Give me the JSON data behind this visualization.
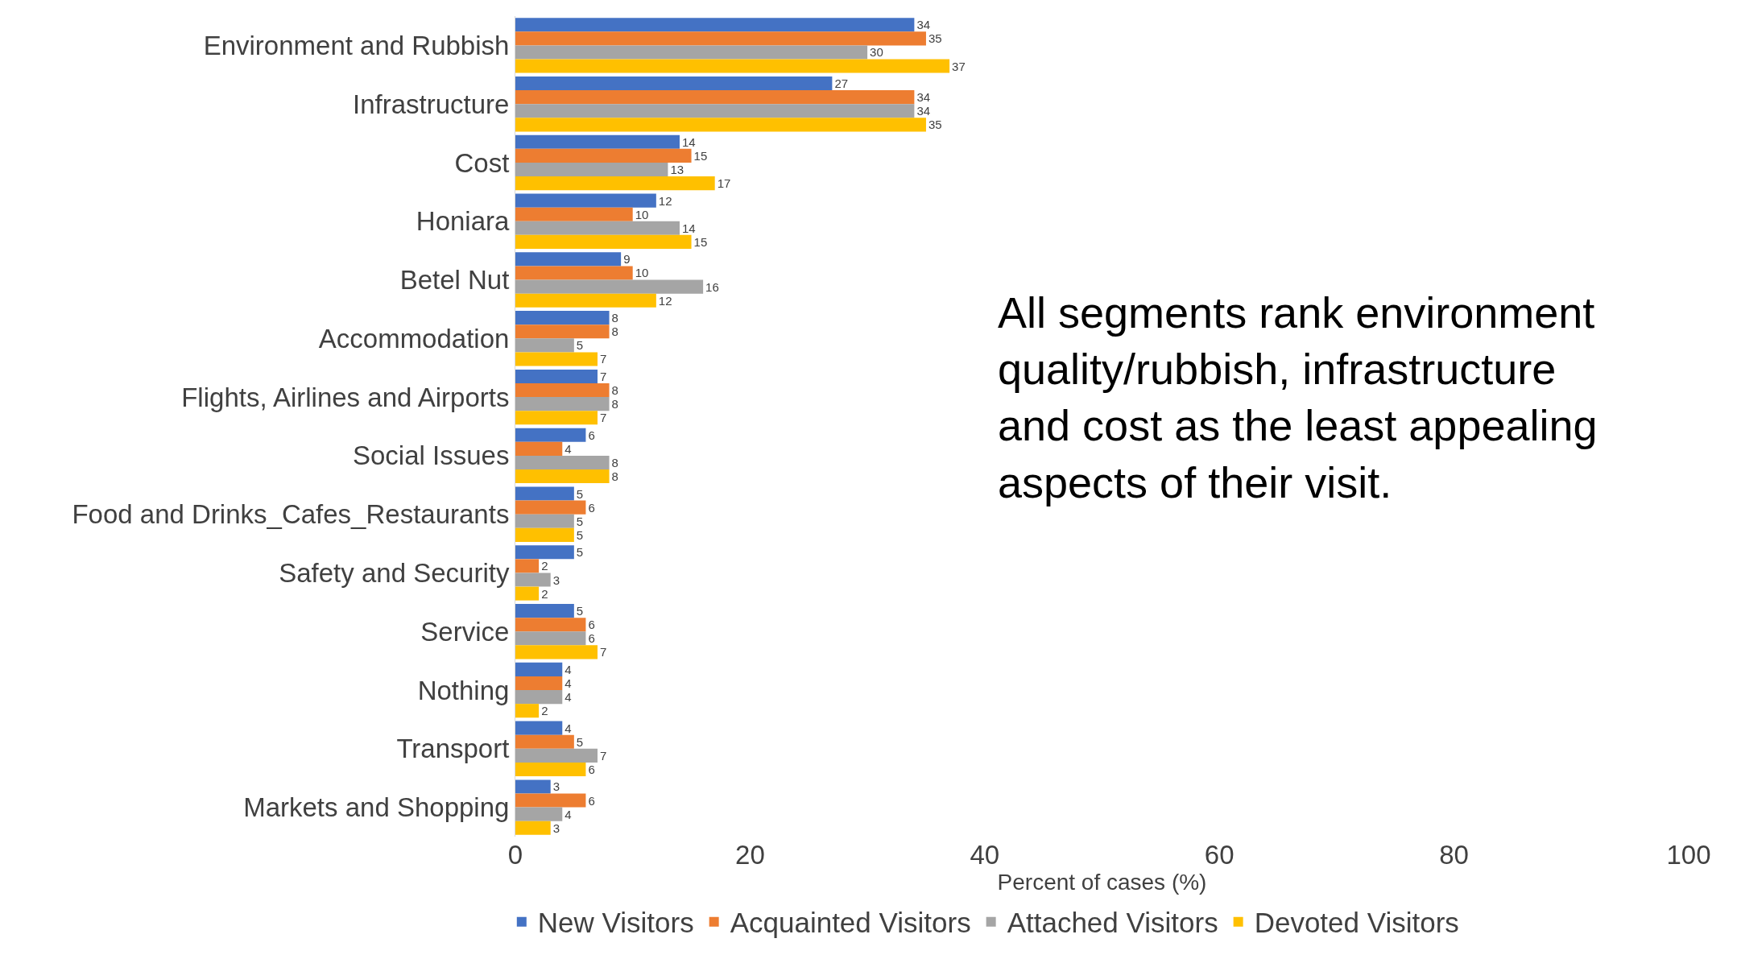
{
  "chart_data": {
    "type": "bar",
    "orientation": "horizontal",
    "xlabel": "Percent of cases (%)",
    "categories": [
      "Environment and Rubbish",
      "Infrastructure",
      "Cost",
      "Honiara",
      "Betel Nut",
      "Accommodation",
      "Flights, Airlines and Airports",
      "Social Issues",
      "Food and Drinks_Cafes_Restaurants",
      "Safety and Security",
      "Service",
      "Nothing",
      "Transport",
      "Markets and Shopping"
    ],
    "series": [
      {
        "name": "New Visitors",
        "color": "#4472c4",
        "values": [
          34,
          27,
          14,
          12,
          9,
          8,
          7,
          6,
          5,
          5,
          5,
          4,
          4,
          3
        ]
      },
      {
        "name": "Acquainted Visitors",
        "color": "#ed7d31",
        "values": [
          35,
          34,
          15,
          10,
          10,
          8,
          8,
          4,
          6,
          2,
          6,
          4,
          5,
          6
        ]
      },
      {
        "name": "Attached Visitors",
        "color": "#a5a5a5",
        "values": [
          30,
          34,
          13,
          14,
          16,
          5,
          8,
          8,
          5,
          3,
          6,
          4,
          7,
          4
        ]
      },
      {
        "name": "Devoted Visitors",
        "color": "#ffc000",
        "values": [
          37,
          35,
          17,
          15,
          12,
          7,
          7,
          8,
          5,
          2,
          7,
          2,
          6,
          3
        ]
      }
    ],
    "xlim": [
      0,
      100
    ],
    "xticks": [
      0,
      20,
      40,
      60,
      80,
      100
    ],
    "grid": false,
    "legend": "bottom",
    "data_labels": true,
    "annotations": [
      "All segments rank environment quality/rubbish, infrastructure and cost as the least appealing aspects of their visit."
    ]
  }
}
